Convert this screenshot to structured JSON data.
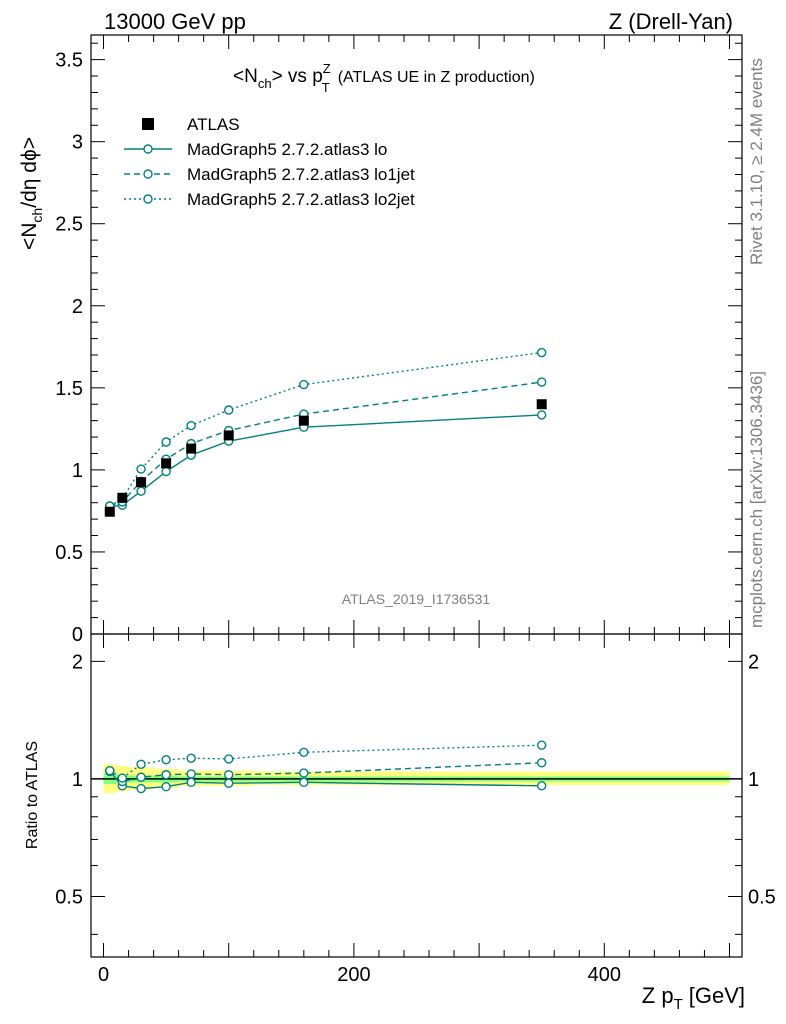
{
  "header": {
    "left": "13000 GeV pp",
    "right": "Z (Drell-Yan)"
  },
  "side_text": {
    "rivet": "Rivet 3.1.10, ≥ 2.4M events",
    "mcplots": "mcplots.cern.ch [arXiv:1306.3436]"
  },
  "plot_title": {
    "main": "<N",
    "sub_ch": "ch",
    "middle": "> vs p",
    "sup_z": "Z",
    "sub_t": "T",
    "tail": "(ATLAS UE in Z production)"
  },
  "ylabel_main": "<N_ch/dη dϕ>",
  "ylabel_main_parts": {
    "a": "<N",
    "b": "ch",
    "c": "/dη dϕ>"
  },
  "ylabel_ratio": "Ratio to ATLAS",
  "xlabel_parts": {
    "a": "Z p",
    "b": "T",
    "c": "[GeV]"
  },
  "watermark": "ATLAS_2019_I1736531",
  "legend": [
    {
      "label": "ATLAS",
      "style": "data"
    },
    {
      "label": "MadGraph5 2.7.2.atlas3 lo",
      "style": "solid"
    },
    {
      "label": "MadGraph5 2.7.2.atlas3 lo1jet",
      "style": "dashed"
    },
    {
      "label": "MadGraph5 2.7.2.atlas3 lo2jet",
      "style": "dotted"
    }
  ],
  "colors": {
    "mc": "#008080",
    "data": "#000000",
    "band_yellow": "#ffff80",
    "band_green": "#80ff80"
  },
  "chart_data": [
    {
      "type": "scatter",
      "panel": "main",
      "xlim": [
        -10,
        510
      ],
      "ylim": [
        0,
        3.65
      ],
      "yticks": [
        0,
        0.5,
        1,
        1.5,
        2,
        2.5,
        3,
        3.5
      ],
      "ytick_labels": [
        "0",
        "0.5",
        "1",
        "1.5",
        "2",
        "2.5",
        "3",
        "3.5"
      ],
      "series": [
        {
          "name": "ATLAS",
          "x": [
            5,
            15,
            30,
            50,
            70,
            100,
            160,
            350
          ],
          "y": [
            0.745,
            0.83,
            0.925,
            1.04,
            1.13,
            1.21,
            1.3,
            1.4
          ]
        },
        {
          "name": "MadGraph5 2.7.2.atlas3 lo",
          "x": [
            5,
            15,
            30,
            50,
            70,
            100,
            160,
            350
          ],
          "y": [
            0.775,
            0.785,
            0.87,
            0.99,
            1.09,
            1.175,
            1.26,
            1.335
          ]
        },
        {
          "name": "MadGraph5 2.7.2.atlas3 lo1jet",
          "x": [
            5,
            15,
            30,
            50,
            70,
            100,
            160,
            350
          ],
          "y": [
            0.78,
            0.805,
            0.93,
            1.065,
            1.16,
            1.24,
            1.34,
            1.535
          ]
        },
        {
          "name": "MadGraph5 2.7.2.atlas3 lo2jet",
          "x": [
            5,
            15,
            30,
            50,
            70,
            100,
            160,
            350
          ],
          "y": [
            0.78,
            0.825,
            1.005,
            1.17,
            1.27,
            1.365,
            1.52,
            1.715
          ]
        }
      ]
    },
    {
      "type": "scatter",
      "panel": "ratio",
      "xlim": [
        -10,
        510
      ],
      "ylim": [
        0.35,
        2.35
      ],
      "yscale": "log",
      "yticks": [
        0.5,
        1,
        2
      ],
      "ytick_labels": [
        "0.5",
        "1",
        "2"
      ],
      "xticks": [
        0,
        200,
        400
      ],
      "xtick_labels": [
        "0",
        "200",
        "400"
      ],
      "series": [
        {
          "name": "MadGraph5 2.7.2.atlas3 lo",
          "x": [
            5,
            15,
            30,
            50,
            70,
            100,
            160,
            350
          ],
          "y": [
            1.045,
            0.96,
            0.945,
            0.955,
            0.98,
            0.975,
            0.98,
            0.96
          ]
        },
        {
          "name": "MadGraph5 2.7.2.atlas3 lo1jet",
          "x": [
            5,
            15,
            30,
            50,
            70,
            100,
            160,
            350
          ],
          "y": [
            1.05,
            0.985,
            1.01,
            1.025,
            1.03,
            1.025,
            1.035,
            1.1
          ]
        },
        {
          "name": "MadGraph5 2.7.2.atlas3 lo2jet",
          "x": [
            5,
            15,
            30,
            50,
            70,
            100,
            160,
            350
          ],
          "y": [
            1.05,
            1.005,
            1.09,
            1.12,
            1.13,
            1.125,
            1.17,
            1.22
          ]
        }
      ],
      "uncertainty_band": {
        "x_edges": [
          0,
          10,
          20,
          40,
          60,
          80,
          120,
          200,
          500
        ],
        "yellow": [
          [
            0.92,
            1.09
          ],
          [
            0.93,
            1.08
          ],
          [
            0.94,
            1.07
          ],
          [
            0.95,
            1.06
          ],
          [
            0.96,
            1.05
          ],
          [
            0.96,
            1.05
          ],
          [
            0.965,
            1.045
          ],
          [
            0.965,
            1.045
          ]
        ],
        "green": [
          [
            0.97,
            1.03
          ],
          [
            0.975,
            1.025
          ],
          [
            0.98,
            1.02
          ],
          [
            0.98,
            1.02
          ],
          [
            0.985,
            1.015
          ],
          [
            0.985,
            1.015
          ],
          [
            0.985,
            1.015
          ],
          [
            0.985,
            1.015
          ]
        ]
      }
    }
  ]
}
